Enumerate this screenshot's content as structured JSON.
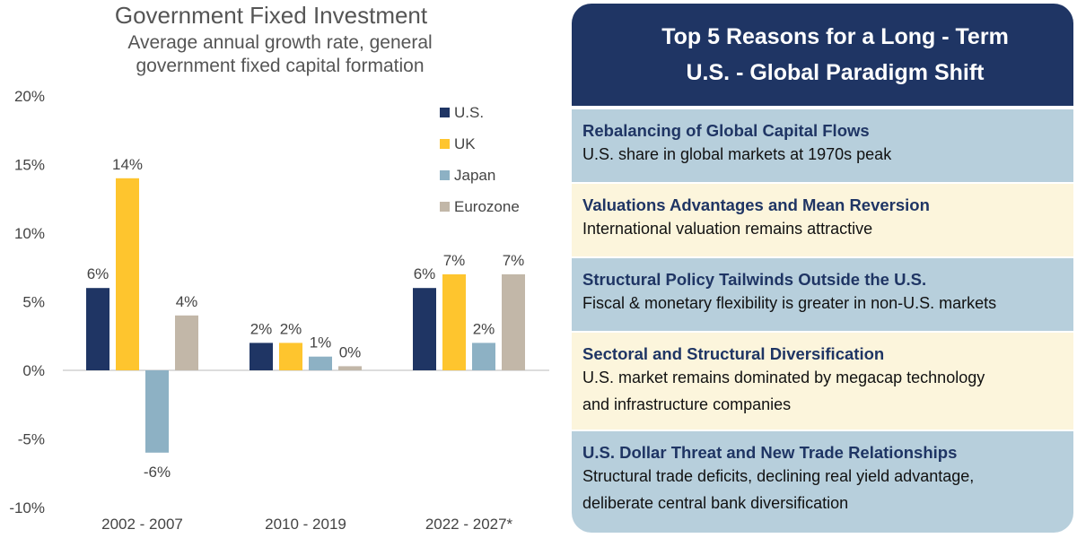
{
  "chart_data": {
    "type": "bar",
    "title": "Government Fixed Investment",
    "subtitle_lines": [
      "Average annual growth rate, general",
      "government fixed capital formation"
    ],
    "categories": [
      "2002 - 2007",
      "2010 - 2019",
      "2022 - 2027*"
    ],
    "y_ticks": [
      "20%",
      "15%",
      "10%",
      "5%",
      "0%",
      "-5%",
      "-10%"
    ],
    "ylim": [
      -10,
      20
    ],
    "grid": false,
    "legend_position": "top-right",
    "series": [
      {
        "name": "U.S.",
        "color": "#1f3564",
        "values": [
          6,
          2,
          6
        ],
        "labels": [
          "6%",
          "2%",
          "6%"
        ]
      },
      {
        "name": "UK",
        "color": "#fec52e",
        "values": [
          14,
          2,
          7
        ],
        "labels": [
          "14%",
          "2%",
          "7%"
        ]
      },
      {
        "name": "Japan",
        "color": "#8db1c4",
        "values": [
          -6,
          1,
          2
        ],
        "labels": [
          "-6%",
          "1%",
          "2%"
        ]
      },
      {
        "name": "Eurozone",
        "color": "#c2b7a8",
        "values": [
          4,
          0.3,
          7
        ],
        "labels": [
          "4%",
          "0%",
          "7%"
        ]
      }
    ]
  },
  "panel": {
    "title_line1": "Top 5 Reasons for a Long - Term",
    "title_line2": "U.S. - Global Paradigm Shift",
    "reasons": [
      {
        "title": "Rebalancing of Global Capital Flows",
        "desc1": "U.S. share in global markets at 1970s peak",
        "desc2": ""
      },
      {
        "title": "Valuations Advantages and Mean Reversion",
        "desc1": "International valuation remains attractive",
        "desc2": ""
      },
      {
        "title": "Structural Policy Tailwinds Outside the U.S.",
        "desc1": "Fiscal & monetary flexibility is greater in non-U.S. markets",
        "desc2": ""
      },
      {
        "title": "Sectoral and Structural Diversification",
        "desc1": "U.S. market remains dominated by megacap technology",
        "desc2": "and infrastructure companies"
      },
      {
        "title": "U.S. Dollar Threat and New Trade Relationships",
        "desc1": "Structural trade deficits, declining real yield advantage,",
        "desc2": "deliberate central bank diversification"
      }
    ]
  }
}
